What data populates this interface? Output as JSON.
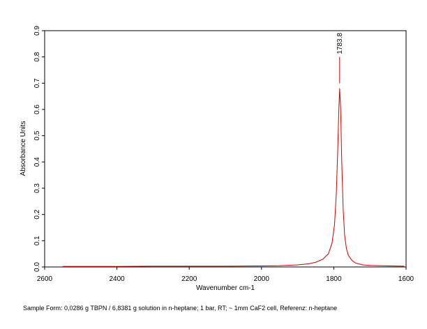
{
  "chart_data": {
    "type": "line",
    "xlabel": "Wavenumber cm-1",
    "ylabel": "Absorbance Units",
    "footer": "Sample Form: 0,0286 g TBPN / 6,8381 g solution in n-heptane; 1 bar, RT; ~ 1mm CaF2 cell, Referenz: n-heptane",
    "color": "#cc0000",
    "x": [
      2550,
      2400,
      2300,
      2200,
      2100,
      2000,
      1950,
      1900,
      1870,
      1850,
      1830,
      1815,
      1805,
      1798,
      1793,
      1789,
      1786,
      1783.8,
      1781,
      1778,
      1774,
      1770,
      1765,
      1760,
      1750,
      1740,
      1720,
      1700,
      1650,
      1605
    ],
    "values": [
      0.002,
      0.002,
      0.003,
      0.003,
      0.003,
      0.004,
      0.005,
      0.008,
      0.012,
      0.018,
      0.03,
      0.05,
      0.09,
      0.16,
      0.28,
      0.45,
      0.6,
      0.68,
      0.6,
      0.4,
      0.22,
      0.12,
      0.07,
      0.045,
      0.025,
      0.015,
      0.008,
      0.006,
      0.004,
      0.003
    ],
    "xlim": [
      2600,
      1600
    ],
    "xticks": [
      2600,
      2400,
      2200,
      2000,
      1800,
      1600
    ],
    "ylim": [
      0,
      0.9
    ],
    "yticks": [
      {
        "value": 0,
        "label": "0.0"
      },
      0.1,
      0.2,
      0.3,
      0.4,
      0.5,
      0.6,
      0.7,
      0.8,
      0.9
    ],
    "annotations": [
      {
        "x": 1783.8
      }
    ]
  }
}
